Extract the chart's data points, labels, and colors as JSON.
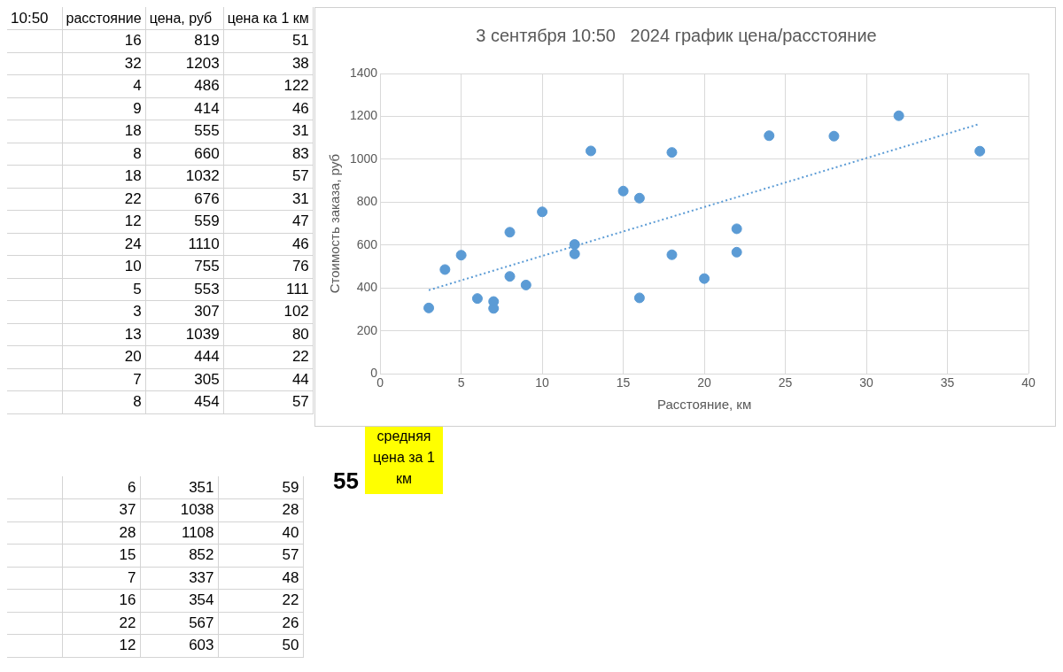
{
  "chart_data": [
    {
      "type": "other",
      "title": "10:50",
      "categories": [
        "расстояние",
        "цена, руб",
        "цена ка 1 км"
      ],
      "annotations": [
        "16",
        "819",
        "51",
        "32",
        "1203",
        "38",
        "4",
        "486",
        "122",
        "9",
        "414",
        "46",
        "18",
        "555",
        "31",
        "8",
        "660",
        "83",
        "18",
        "1032",
        "57",
        "22",
        "676",
        "31",
        "12",
        "559",
        "47",
        "24",
        "1110",
        "46",
        "10",
        "755",
        "76",
        "5",
        "553",
        "111",
        "3",
        "307",
        "102",
        "13",
        "1039",
        "80",
        "20",
        "444",
        "22",
        "7",
        "305",
        "44",
        "8",
        "454",
        "57"
      ]
    },
    {
      "type": "other",
      "categories": [
        null,
        null,
        null
      ],
      "annotations": [
        "6",
        "351",
        "59",
        "37",
        "1038",
        "28",
        "28",
        "1108",
        "40",
        "15",
        "852",
        "57",
        "7",
        "337",
        "48",
        "16",
        "354",
        "22",
        "22",
        "567",
        "26",
        "12",
        "603",
        "50"
      ]
    },
    {
      "type": "other",
      "annotations": [
        "55",
        "средняя цена за 1 км"
      ]
    },
    {
      "type": "scatter",
      "title": "3 сентября 10:50   2024 график цена/расстояние",
      "xlabel": "Расстояние, км",
      "ylabel": "Стоимость заказа, руб",
      "xlim": [
        0,
        40
      ],
      "xticks": [
        0,
        5,
        10,
        15,
        20,
        25,
        30,
        35,
        40
      ],
      "ylim": [
        0,
        1400
      ],
      "yticks": [
        0,
        200,
        400,
        600,
        800,
        1000,
        1200,
        1400
      ],
      "grid": true,
      "legend": false,
      "series": [
        {
          "type": "scatter",
          "marker": "circle",
          "color": "#5b9bd5",
          "x": [
            16,
            32,
            4,
            9,
            18,
            8,
            18,
            22,
            12,
            24,
            10,
            5,
            3,
            13,
            20,
            7,
            8,
            6,
            37,
            28,
            15,
            7,
            16,
            22,
            12
          ],
          "values": [
            819,
            1203,
            486,
            414,
            555,
            660,
            1032,
            676,
            559,
            1110,
            755,
            553,
            307,
            1039,
            444,
            305,
            454,
            351,
            1038,
            1108,
            852,
            337,
            354,
            567,
            603
          ]
        },
        {
          "type": "line",
          "marker": "none",
          "color": "#5b9bd5",
          "line_style": "dotted",
          "x": [
            3,
            37
          ],
          "values": [
            390,
            1165
          ]
        }
      ]
    }
  ]
}
